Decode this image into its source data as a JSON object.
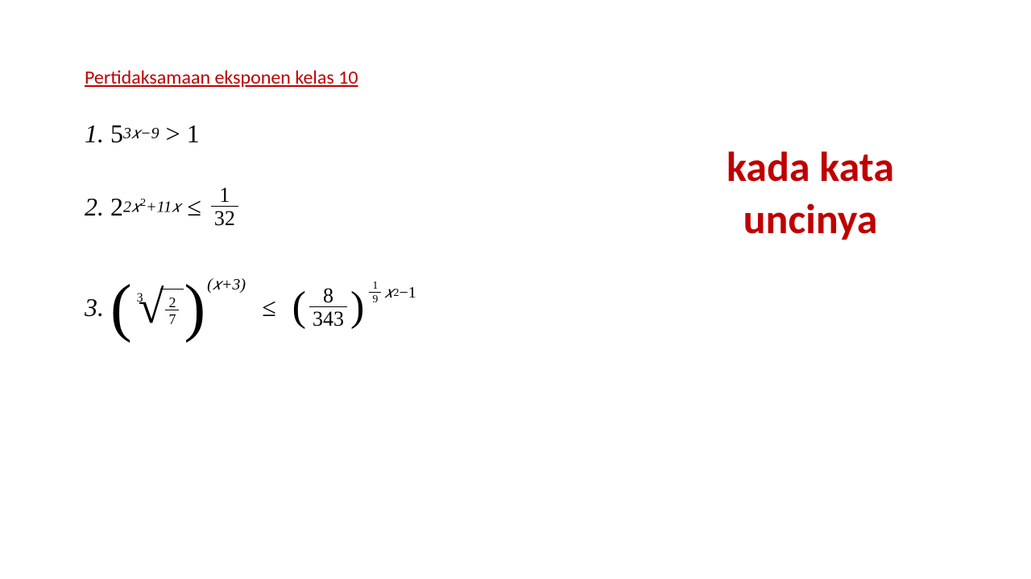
{
  "title": "Pertidaksamaan eksponen kelas 10",
  "side_text_line1": "kada kata",
  "side_text_line2": "uncinya",
  "colors": {
    "title_color": "#c00000",
    "side_text_color": "#c00000",
    "math_color": "#000000",
    "background": "#ffffff"
  },
  "problems": {
    "p1": {
      "label": "1.",
      "base": "5",
      "exponent": "3𝑥−9",
      "operator": ">",
      "rhs": "1"
    },
    "p2": {
      "label": "2.",
      "base": "2",
      "exponent_a": "2𝑥",
      "exponent_sup": "2",
      "exponent_b": "+11𝑥",
      "operator": "≤",
      "rhs_num": "1",
      "rhs_den": "32"
    },
    "p3": {
      "label": "3.",
      "root_index": "3",
      "radicand_num": "2",
      "radicand_den": "7",
      "lhs_exp": "(𝑥+3)",
      "operator": "≤",
      "rhs_num": "8",
      "rhs_den": "343",
      "rhs_exp_frac_num": "1",
      "rhs_exp_frac_den": "9",
      "rhs_exp_tail_a": "𝑥",
      "rhs_exp_tail_sup": "2",
      "rhs_exp_tail_b": "−1"
    }
  }
}
